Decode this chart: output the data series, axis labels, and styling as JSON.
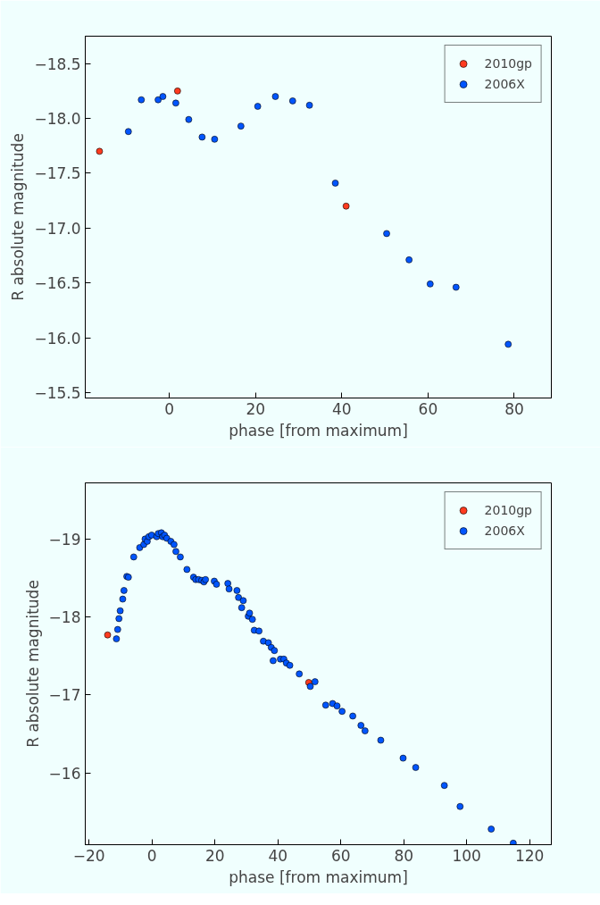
{
  "chart_data": [
    {
      "type": "scatter",
      "xlabel": "phase [from maximum]",
      "ylabel": "R absolute magnitude",
      "xlim": [
        -19.5,
        88.6
      ],
      "ylim": [
        -15.45,
        -18.75
      ],
      "xticks": [
        0,
        20,
        40,
        60,
        80
      ],
      "yticks": [
        {
          "value": -18.5,
          "label": "−18.5"
        },
        {
          "value": -18.0,
          "label": "−18.0"
        },
        {
          "value": -17.5,
          "label": "−17.5"
        },
        {
          "value": -17.0,
          "label": "−17.0"
        },
        {
          "value": -16.5,
          "label": "−16.5"
        },
        {
          "value": -16.0,
          "label": "−16.0"
        },
        {
          "value": -15.5,
          "label": "−15.5"
        }
      ],
      "grid": false,
      "legend": "top right",
      "marker": "circle",
      "series": [
        {
          "name": "2010gp",
          "color": "#ff3b1f",
          "x": [
            -16.2,
            1.9,
            41.0
          ],
          "values": [
            -17.7,
            -18.25,
            -17.2
          ]
        },
        {
          "name": "2006X",
          "color": "#0055ff",
          "x": [
            -9.5,
            -6.5,
            -2.6,
            -1.5,
            1.5,
            4.5,
            7.6,
            10.5,
            16.6,
            20.5,
            24.6,
            28.6,
            32.5,
            38.5,
            50.4,
            55.6,
            60.5,
            66.5,
            78.6
          ],
          "values": [
            -17.88,
            -18.17,
            -18.17,
            -18.2,
            -18.14,
            -17.99,
            -17.83,
            -17.81,
            -17.93,
            -18.11,
            -18.2,
            -18.16,
            -18.12,
            -17.41,
            -16.95,
            -16.71,
            -16.49,
            -16.46,
            -15.94
          ]
        }
      ]
    },
    {
      "type": "scatter",
      "xlabel": "phase [from maximum]",
      "ylabel": "R absolute magnitude",
      "xlim": [
        -21.2,
        126.9
      ],
      "ylim": [
        -15.08,
        -19.72
      ],
      "xticks": [
        {
          "value": -20,
          "label": "−20"
        },
        0,
        20,
        40,
        60,
        80,
        100,
        120
      ],
      "yticks": [
        {
          "value": -19,
          "label": "−19"
        },
        {
          "value": -18,
          "label": "−18"
        },
        {
          "value": -17,
          "label": "−17"
        },
        {
          "value": -16,
          "label": "−16"
        }
      ],
      "grid": false,
      "legend": "top right",
      "marker": "circle",
      "series": [
        {
          "name": "2010gp",
          "color": "#ff3b1f",
          "x": [
            -14.1,
            49.8
          ],
          "values": [
            -17.77,
            -17.16
          ]
        },
        {
          "name": "2006X",
          "color": "#0055ff",
          "x": [
            -11.3,
            -10.9,
            -10.5,
            -10.1,
            -9.3,
            -8.9,
            -8.0,
            -7.5,
            -5.8,
            -3.9,
            -2.6,
            -2.2,
            -1.5,
            -1.0,
            -0.1,
            1.5,
            2.0,
            3.0,
            3.4,
            4.0,
            4.7,
            6.0,
            7.0,
            7.6,
            9.0,
            11.1,
            13.2,
            13.9,
            14.8,
            15.8,
            16.5,
            17.0,
            19.8,
            20.5,
            24.1,
            24.5,
            27.0,
            27.5,
            28.5,
            29.0,
            30.6,
            31.0,
            31.9,
            32.5,
            34.0,
            35.4,
            37.0,
            37.9,
            38.9,
            38.5,
            40.8,
            41.9,
            42.7,
            43.8,
            46.8,
            50.3,
            51.8,
            55.2,
            57.4,
            58.8,
            60.4,
            63.8,
            66.4,
            67.7,
            72.7,
            79.8,
            83.8,
            92.9,
            97.9,
            107.8,
            114.8
          ],
          "values": [
            -17.72,
            -17.84,
            -17.98,
            -18.08,
            -18.23,
            -18.34,
            -18.52,
            -18.51,
            -18.77,
            -18.89,
            -18.93,
            -19.0,
            -18.97,
            -19.03,
            -19.05,
            -19.03,
            -19.07,
            -19.08,
            -19.03,
            -19.05,
            -19.01,
            -18.97,
            -18.93,
            -18.84,
            -18.77,
            -18.61,
            -18.51,
            -18.48,
            -18.48,
            -18.47,
            -18.45,
            -18.48,
            -18.46,
            -18.42,
            -18.43,
            -18.36,
            -18.34,
            -18.25,
            -18.12,
            -18.21,
            -18.01,
            -18.05,
            -17.97,
            -17.83,
            -17.82,
            -17.69,
            -17.67,
            -17.61,
            -17.57,
            -17.44,
            -17.46,
            -17.46,
            -17.41,
            -17.38,
            -17.27,
            -17.11,
            -17.17,
            -16.87,
            -16.89,
            -16.86,
            -16.79,
            -16.73,
            -16.61,
            -16.54,
            -16.42,
            -16.19,
            -16.07,
            -15.84,
            -15.57,
            -15.28,
            -15.1
          ]
        }
      ]
    }
  ]
}
